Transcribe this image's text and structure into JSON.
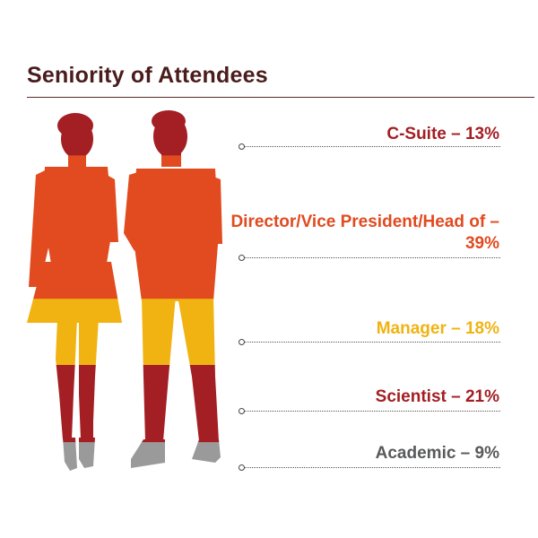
{
  "title": "Seniority of Attendees",
  "chart_data": {
    "type": "table",
    "title": "Seniority of Attendees",
    "unit": "%",
    "categories": [
      "C-Suite",
      "Director/Vice President/Head of",
      "Manager",
      "Scientist",
      "Academic"
    ],
    "values": [
      13,
      39,
      18,
      21,
      9
    ],
    "labels": [
      "C-Suite – 13%",
      "Director/Vice President/Head of – 39%",
      "Manager – 18%",
      "Scientist – 21%",
      "Academic – 9%"
    ],
    "colors": [
      "#a31f24",
      "#e24a1f",
      "#f0b312",
      "#a31f24",
      "#58595b"
    ],
    "body_band_colors": [
      "#a31f24",
      "#e24a1f",
      "#f0b312",
      "#a31f24",
      "#9a9a9a"
    ]
  }
}
